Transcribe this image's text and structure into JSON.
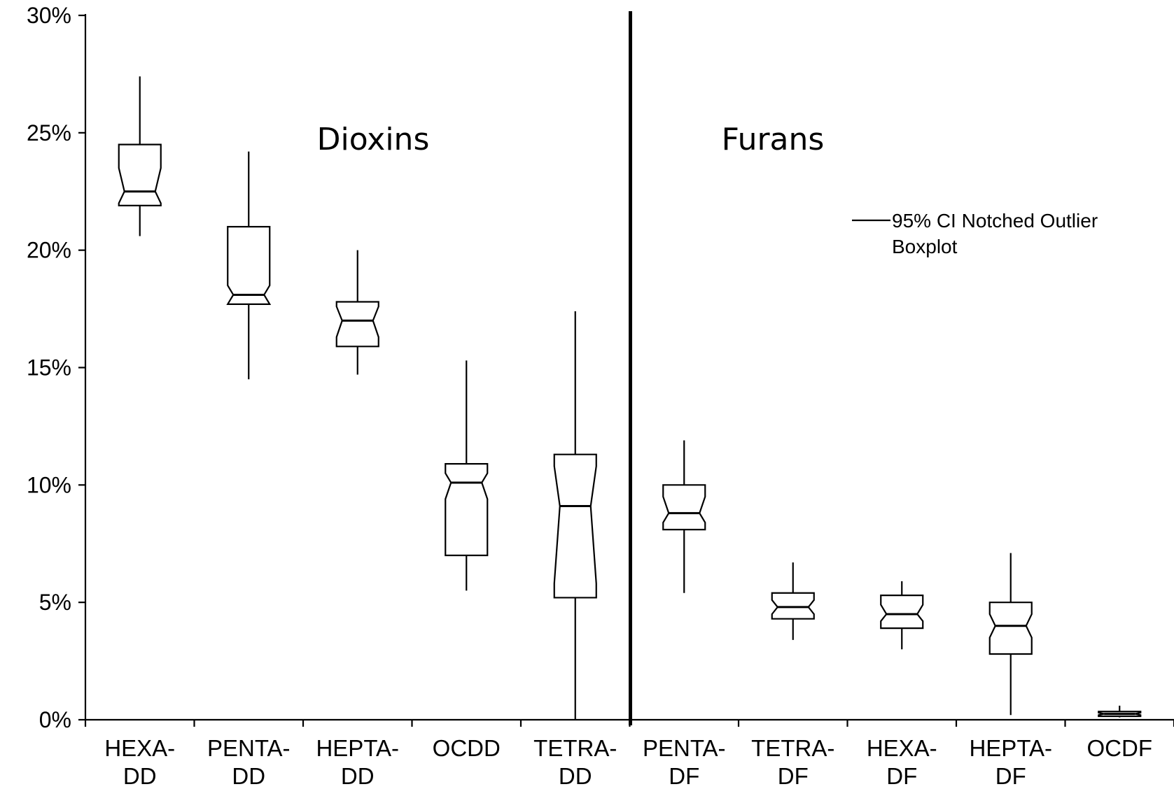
{
  "chart_data": {
    "type": "boxplot",
    "title": "",
    "xlabel": "",
    "ylabel": "",
    "ylim": [
      0,
      30
    ],
    "y_tick_labels": [
      "0%",
      "5%",
      "10%",
      "15%",
      "20%",
      "25%",
      "30%"
    ],
    "y_ticks": [
      0,
      5,
      10,
      15,
      20,
      25,
      30
    ],
    "groups": [
      {
        "label": "Dioxins"
      },
      {
        "label": "Furans"
      }
    ],
    "legend": {
      "label_line1": "95% CI Notched Outlier",
      "label_line2": "Boxplot",
      "position": "top-right"
    },
    "categories": [
      {
        "line1": "HEXA-",
        "line2": "DD",
        "group": "Dioxins",
        "min": 20.6,
        "q1": 21.9,
        "notch_low": 22.0,
        "median": 22.5,
        "notch_high": 23.5,
        "q3": 24.5,
        "max": 27.4
      },
      {
        "line1": "PENTA-",
        "line2": "DD",
        "group": "Dioxins",
        "min": 14.5,
        "q1": 17.7,
        "notch_low": 17.7,
        "median": 18.1,
        "notch_high": 18.5,
        "q3": 21.0,
        "max": 24.2
      },
      {
        "line1": "HEPTA-",
        "line2": "DD",
        "group": "Dioxins",
        "min": 14.7,
        "q1": 15.9,
        "notch_low": 16.3,
        "median": 17.0,
        "notch_high": 17.6,
        "q3": 17.8,
        "max": 20.0
      },
      {
        "line1": "OCDD",
        "line2": "",
        "group": "Dioxins",
        "min": 5.5,
        "q1": 7.0,
        "notch_low": 9.4,
        "median": 10.1,
        "notch_high": 10.5,
        "q3": 10.9,
        "max": 15.3
      },
      {
        "line1": "TETRA-",
        "line2": "DD",
        "group": "Dioxins",
        "min": 0.0,
        "q1": 5.2,
        "notch_low": 5.8,
        "median": 9.1,
        "notch_high": 10.8,
        "q3": 11.3,
        "max": 17.4
      },
      {
        "line1": "PENTA-",
        "line2": "DF",
        "group": "Furans",
        "min": 5.4,
        "q1": 8.1,
        "notch_low": 8.4,
        "median": 8.8,
        "notch_high": 9.5,
        "q3": 10.0,
        "max": 11.9
      },
      {
        "line1": "TETRA-",
        "line2": "DF",
        "group": "Furans",
        "min": 3.4,
        "q1": 4.3,
        "notch_low": 4.5,
        "median": 4.8,
        "notch_high": 5.1,
        "q3": 5.4,
        "max": 6.7
      },
      {
        "line1": "HEXA-",
        "line2": "DF",
        "group": "Furans",
        "min": 3.0,
        "q1": 3.9,
        "notch_low": 4.2,
        "median": 4.5,
        "notch_high": 4.9,
        "q3": 5.3,
        "max": 5.9
      },
      {
        "line1": "HEPTA-",
        "line2": "DF",
        "group": "Furans",
        "min": 0.2,
        "q1": 2.8,
        "notch_low": 3.5,
        "median": 4.0,
        "notch_high": 4.5,
        "q3": 5.0,
        "max": 7.1
      },
      {
        "line1": "OCDF",
        "line2": "",
        "group": "Furans",
        "min": 0.1,
        "q1": 0.15,
        "notch_low": 0.2,
        "median": 0.25,
        "notch_high": 0.3,
        "q3": 0.35,
        "max": 0.6
      }
    ]
  }
}
